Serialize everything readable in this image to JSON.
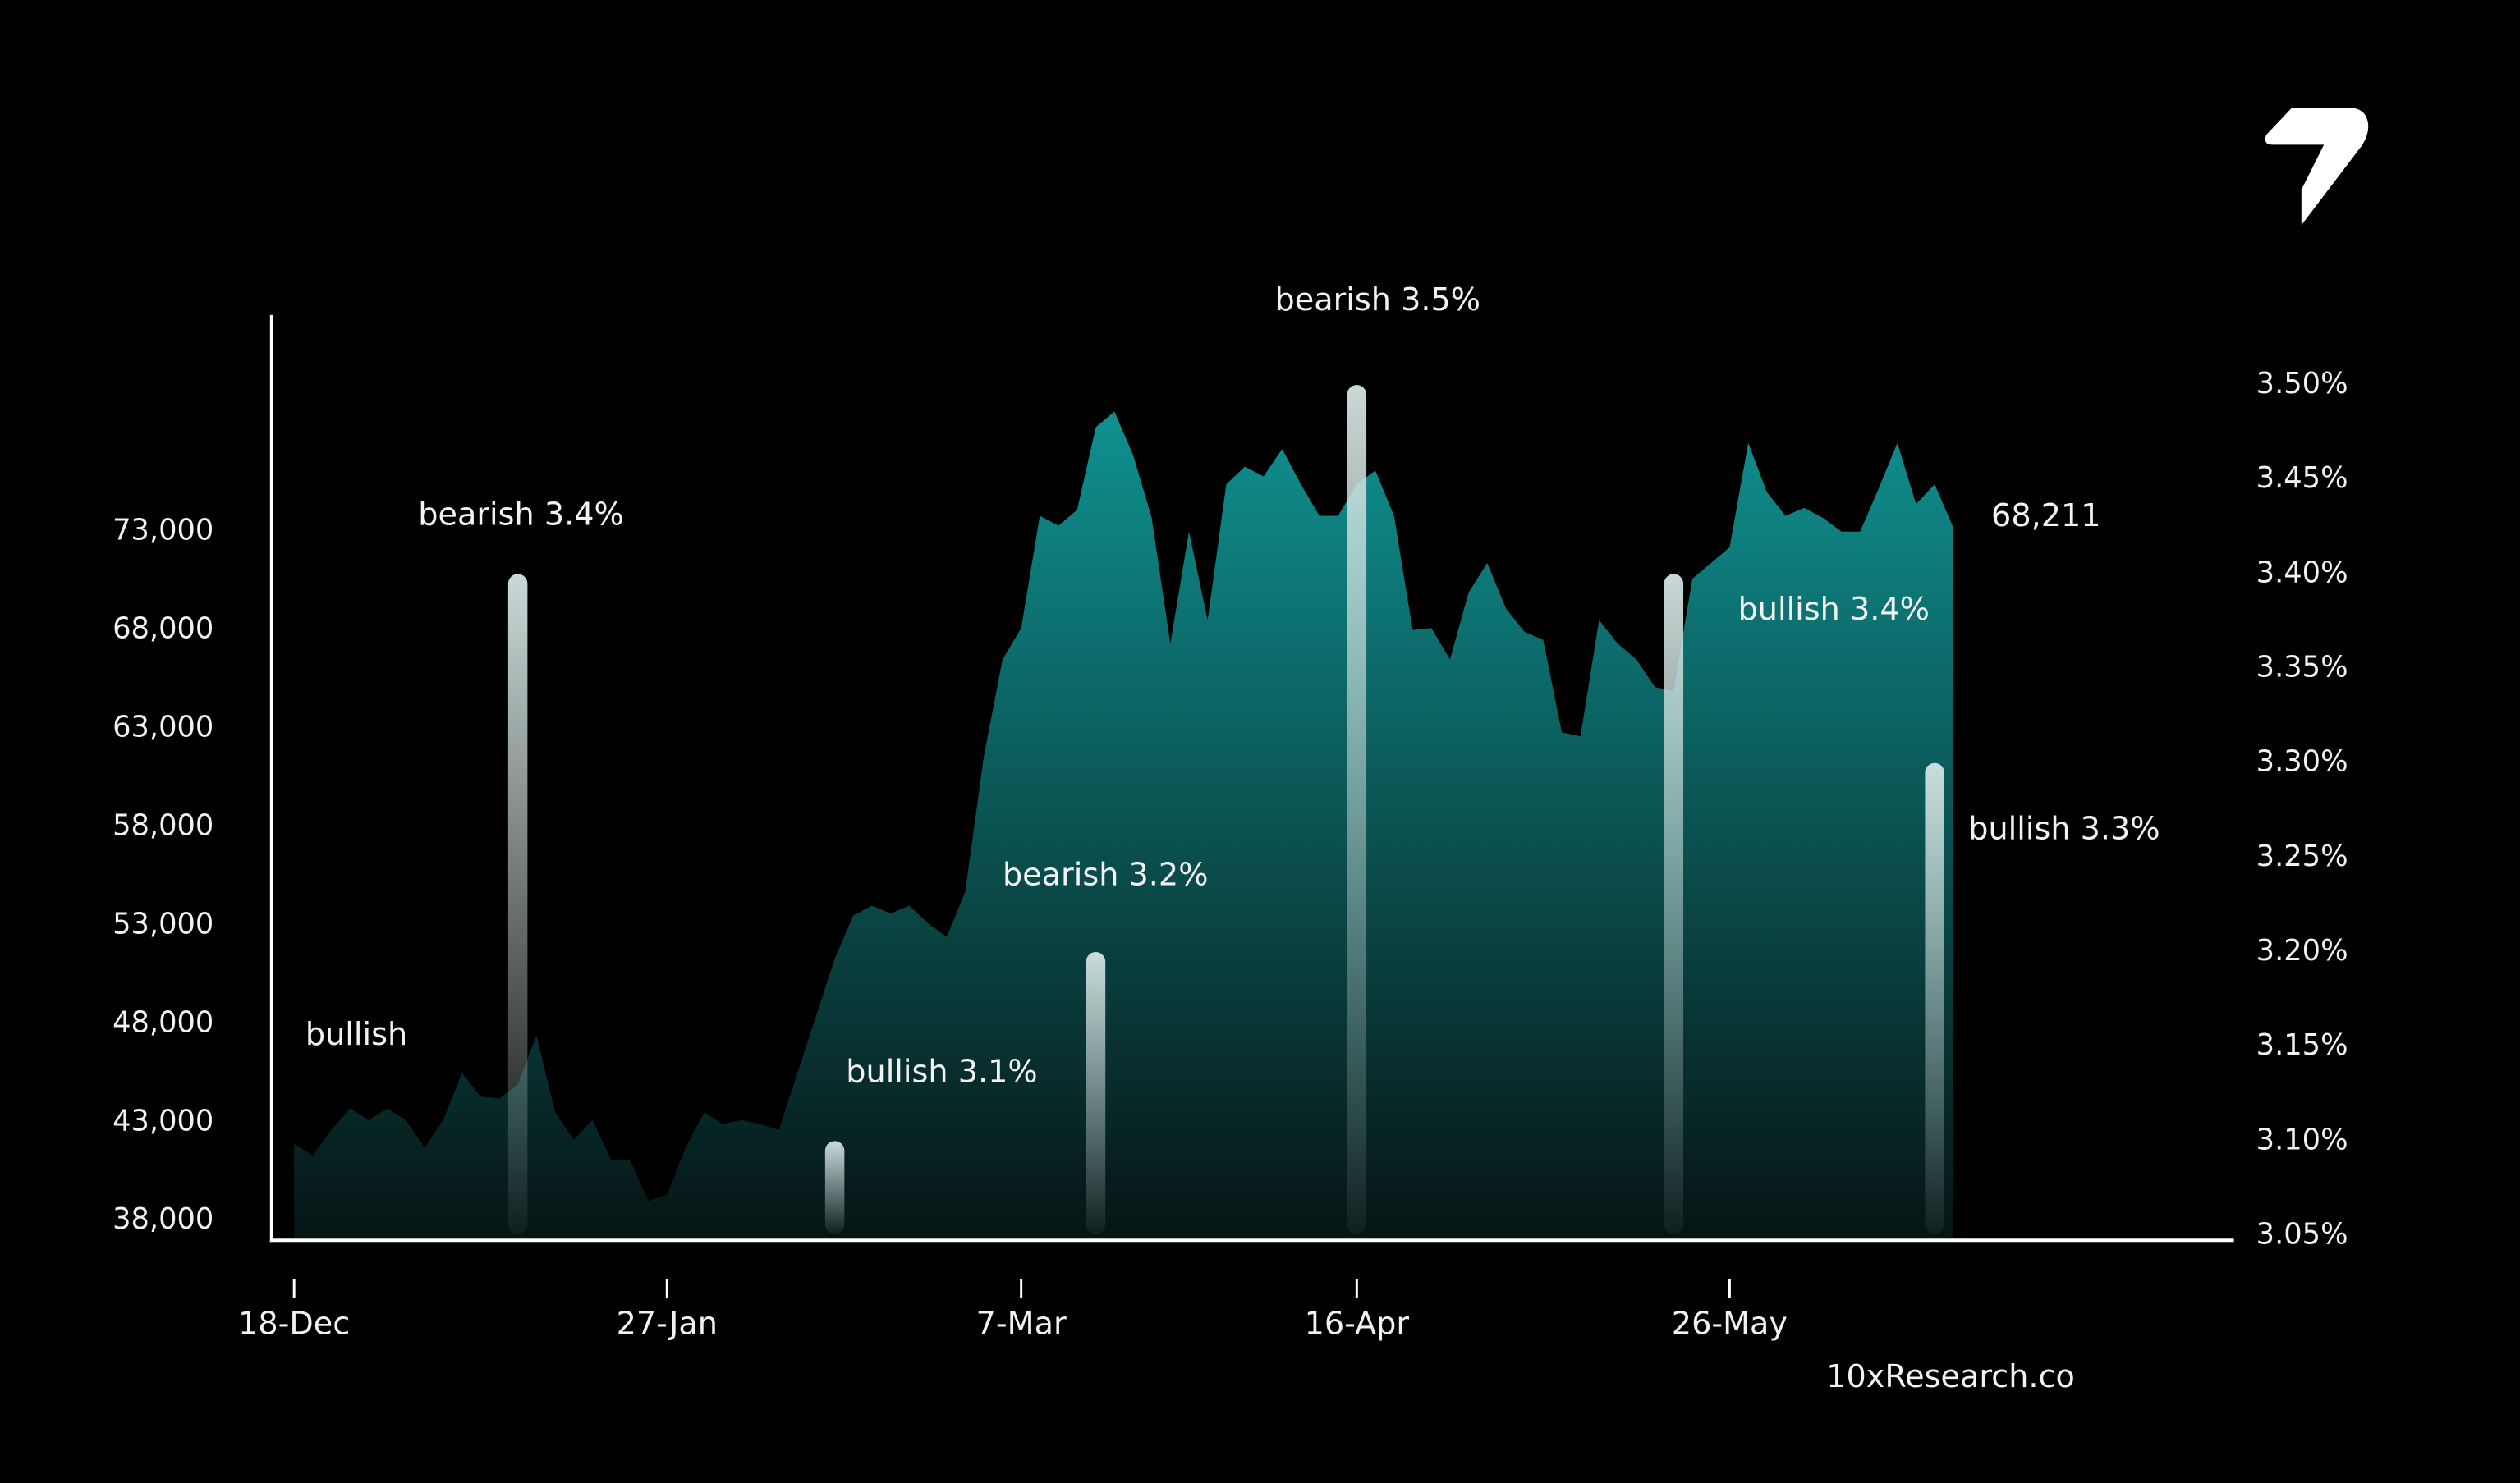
{
  "chart_data": {
    "type": "area",
    "categories": [
      "18-Dec",
      null,
      null,
      null,
      null,
      null,
      null,
      null,
      null,
      null,
      null,
      null,
      null,
      null,
      null,
      null,
      null,
      null,
      null,
      null,
      "27-Jan",
      null,
      null,
      null,
      null,
      null,
      null,
      null,
      null,
      null,
      null,
      null,
      null,
      null,
      null,
      null,
      null,
      null,
      null,
      "7-Mar",
      null,
      null,
      null,
      null,
      null,
      null,
      null,
      null,
      null,
      null,
      null,
      null,
      null,
      null,
      null,
      null,
      null,
      "16-Apr",
      null,
      null,
      null,
      null,
      null,
      null,
      null,
      null,
      null,
      null,
      null,
      null,
      null,
      null,
      null,
      null,
      null,
      null,
      null,
      "26-May",
      null,
      null,
      null,
      null,
      null,
      null,
      null,
      null,
      null,
      null,
      null,
      null
    ],
    "series": [
      {
        "color": "#0f9190",
        "values": [
          41900,
          41300,
          42600,
          43700,
          43100,
          43700,
          43100,
          41700,
          43100,
          45500,
          44300,
          44200,
          44900,
          47400,
          43500,
          42100,
          43100,
          41100,
          41100,
          39000,
          39300,
          41700,
          43500,
          42900,
          43100,
          42900,
          42600,
          45500,
          48400,
          51300,
          53500,
          54000,
          53600,
          54000,
          53100,
          52400,
          54700,
          61600,
          66500,
          68100,
          73800,
          73300,
          74100,
          78300,
          79100,
          76900,
          73700,
          67300,
          73000,
          68500,
          75400,
          76300,
          75800,
          77200,
          75400,
          73800,
          73800,
          75400,
          76100,
          73800,
          68000,
          68100,
          66500,
          69900,
          71400,
          69100,
          67900,
          67500,
          62800,
          62600,
          68500,
          67300,
          66500,
          65100,
          64900,
          70600,
          71400,
          72200,
          77500,
          75000,
          73800,
          74200,
          73700,
          73000,
          73000,
          75200,
          77500,
          74400,
          75400,
          73200
        ]
      },
      {
        "type": "bar",
        "axis": "y2",
        "color": "#d4e4e2",
        "values": [
          null,
          null,
          null,
          null,
          null,
          null,
          null,
          null,
          null,
          null,
          null,
          null,
          3.4,
          null,
          null,
          null,
          null,
          null,
          null,
          null,
          null,
          null,
          null,
          null,
          null,
          null,
          null,
          null,
          null,
          3.1,
          null,
          null,
          null,
          null,
          null,
          null,
          null,
          null,
          null,
          null,
          null,
          null,
          null,
          3.2,
          null,
          null,
          null,
          null,
          null,
          null,
          null,
          null,
          null,
          null,
          null,
          null,
          null,
          3.5,
          null,
          null,
          null,
          null,
          null,
          null,
          null,
          null,
          null,
          null,
          null,
          null,
          null,
          null,
          null,
          null,
          3.4,
          null,
          null,
          null,
          null,
          null,
          null,
          null,
          null,
          null,
          null,
          null,
          null,
          null,
          3.3,
          null
        ],
        "value_labels": [
          null,
          null,
          null,
          null,
          null,
          null,
          null,
          null,
          null,
          null,
          null,
          null,
          "bearish 3.4%",
          null,
          null,
          null,
          null,
          null,
          null,
          null,
          null,
          null,
          null,
          null,
          null,
          null,
          null,
          null,
          null,
          "bullish  3.1%",
          null,
          null,
          null,
          null,
          null,
          null,
          null,
          null,
          null,
          null,
          null,
          null,
          null,
          "bearish 3.2%",
          null,
          null,
          null,
          null,
          null,
          null,
          null,
          null,
          null,
          null,
          null,
          null,
          null,
          "bearish 3.5%",
          null,
          null,
          null,
          null,
          null,
          null,
          null,
          null,
          null,
          null,
          null,
          null,
          null,
          null,
          null,
          null,
          "bullish 3.4%",
          null,
          null,
          null,
          null,
          null,
          null,
          null,
          null,
          null,
          null,
          null,
          null,
          null,
          "bullish 3.3%",
          null
        ]
      }
    ],
    "ylim": [
      37000,
      84000
    ],
    "yticks": [
      {
        "value": 38000,
        "label": "38,000"
      },
      {
        "value": 43000,
        "label": "43,000"
      },
      {
        "value": 48000,
        "label": "48,000"
      },
      {
        "value": 53000,
        "label": "53,000"
      },
      {
        "value": 58000,
        "label": "58,000"
      },
      {
        "value": 63000,
        "label": "63,000"
      },
      {
        "value": 68000,
        "label": "68,000"
      },
      {
        "value": 73000,
        "label": "73,000"
      }
    ],
    "y2lim": [
      3.0475,
      3.537
    ],
    "y2ticks": [
      {
        "value": 3.05,
        "label": "3.05%"
      },
      {
        "value": 3.1,
        "label": "3.10%"
      },
      {
        "value": 3.15,
        "label": "3.15%"
      },
      {
        "value": 3.2,
        "label": "3.20%"
      },
      {
        "value": 3.25,
        "label": "3.25%"
      },
      {
        "value": 3.3,
        "label": "3.30%"
      },
      {
        "value": 3.35,
        "label": "3.35%"
      },
      {
        "value": 3.4,
        "label": "3.40%"
      },
      {
        "value": 3.45,
        "label": "3.45%"
      },
      {
        "value": 3.5,
        "label": "3.50%"
      }
    ],
    "grid": false,
    "annotations": [
      "bullish",
      "68,211"
    ],
    "source": "10xResearch.co"
  }
}
